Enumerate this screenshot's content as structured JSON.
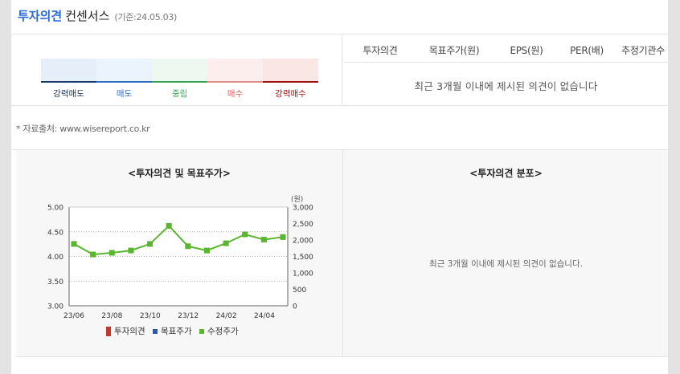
{
  "header": {
    "title_accent": "투자의견",
    "title_main": "컨센서스",
    "date_text": "(기준:24.05.03)"
  },
  "scale": {
    "labels": [
      "강력매도",
      "매도",
      "중립",
      "매수",
      "강력매수"
    ],
    "colors": {
      "fills": [
        "#e5eef9",
        "#ebf3fc",
        "#eef8f1",
        "#fdeeee",
        "#fbe6e6"
      ],
      "bars": [
        "#1b3a6b",
        "#2f6fc2",
        "#3aa35a",
        "#e08a8a",
        "#a00c0c"
      ],
      "text": [
        "#1b3a6b",
        "#2f6fc2",
        "#3aa35a",
        "#e05c5c",
        "#b01010"
      ]
    }
  },
  "table": {
    "headers": [
      "투자의견",
      "목표주가(원)",
      "EPS(원)",
      "PER(배)",
      "추정기관수"
    ],
    "empty_message": "최근 3개월 이내에 제시된 의견이 없습니다"
  },
  "source_text": "* 자료출처: www.wisereport.co.kr",
  "left_section_title": "<투자의견 및 목표주가>",
  "right_section_title": "<투자의견 분포>",
  "distribution_empty_message": "최근 3개월 이내에 제시된 의견이 없습니다.",
  "chart_data": {
    "type": "line",
    "title": "<투자의견 및 목표주가>",
    "x_tick_labels": [
      "23/06",
      "23/08",
      "23/10",
      "23/12",
      "24/02",
      "24/04"
    ],
    "y_left": {
      "ticks": [
        "5.00",
        "4.50",
        "4.00",
        "3.50",
        "3.00"
      ],
      "range": [
        3.0,
        5.0
      ]
    },
    "y_right": {
      "unit": "(원)",
      "ticks": [
        "3,000",
        "2,500",
        "2,000",
        "1,500",
        "1,000",
        "500",
        "0"
      ],
      "range": [
        0,
        3000
      ]
    },
    "series": [
      {
        "name": "투자의견",
        "color": "#c0392b",
        "values": []
      },
      {
        "name": "목표주가",
        "color": "#2c5aa0",
        "values": []
      },
      {
        "name": "수정주가",
        "color": "#5ab52f",
        "axis": "right",
        "values": [
          1880,
          1560,
          1610,
          1680,
          1880,
          2430,
          1810,
          1680,
          1900,
          2170,
          2010,
          2090
        ]
      }
    ],
    "grid": true
  }
}
